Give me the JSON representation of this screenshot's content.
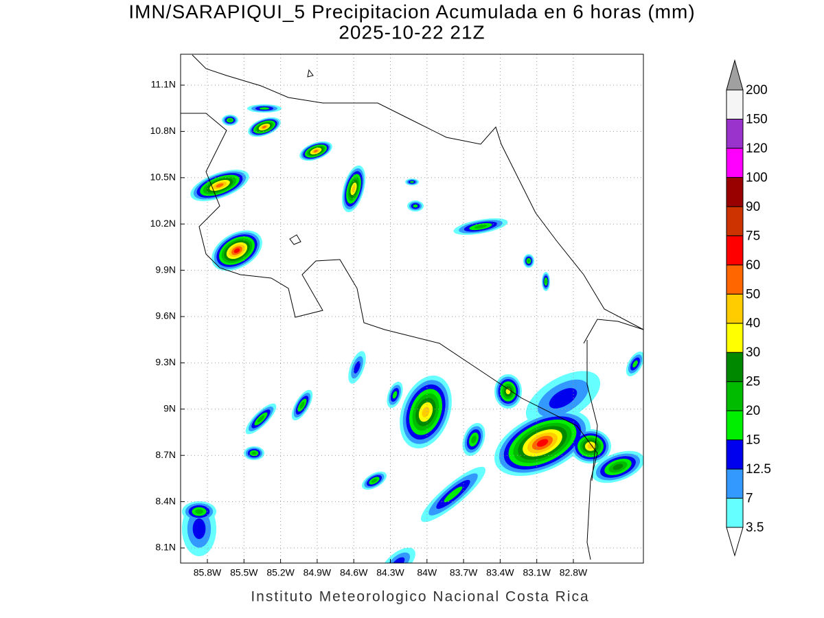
{
  "map": {
    "title": "IMN/SARAPIQUI_5 Precipitacion Acumulada en 6 horas (mm)",
    "subtitle": "2025-10-22 21Z",
    "lat_labels": [
      "11.1N",
      "10.8N",
      "10.5N",
      "10.2N",
      "9.9N",
      "9.6N",
      "9.3N",
      "9N",
      "8.7N",
      "8.4N",
      "8.1N"
    ],
    "lon_labels": [
      "85.8W",
      "85.5W",
      "85.2W",
      "84.9W",
      "84.6W",
      "84.3W",
      "84W",
      "83.7W",
      "83.4W",
      "83.1W",
      "82.8W"
    ],
    "footer": "Instituto Meteorologico Nacional Costa Rica"
  },
  "colorbar": {
    "levels": [
      3.5,
      7,
      12.5,
      15,
      20,
      25,
      30,
      40,
      50,
      60,
      75,
      90,
      100,
      120,
      150,
      200
    ],
    "colors": [
      "#66ffff",
      "#3399ff",
      "#0000ee",
      "#00ee00",
      "#00bb00",
      "#008800",
      "#ffff00",
      "#ffcc00",
      "#ff6600",
      "#ff0000",
      "#cc3300",
      "#990000",
      "#ff00ff",
      "#9933cc",
      "#f5f5f5"
    ],
    "over_color": "#a0a0a0",
    "under_color": "#ffffff"
  }
}
